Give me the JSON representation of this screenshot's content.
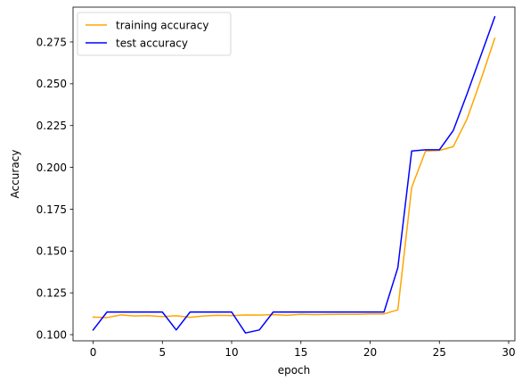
{
  "chart_data": {
    "type": "line",
    "title": "",
    "xlabel": "epoch",
    "ylabel": "Accuracy",
    "xlim": [
      -1.45,
      30.45
    ],
    "ylim": [
      0.0963,
      0.2958
    ],
    "xticks": [
      0,
      5,
      10,
      15,
      20,
      25,
      30
    ],
    "yticks": [
      0.1,
      0.125,
      0.15,
      0.175,
      0.2,
      0.225,
      0.25,
      0.275
    ],
    "ytick_labels": [
      "0.100",
      "0.125",
      "0.150",
      "0.175",
      "0.200",
      "0.225",
      "0.250",
      "0.275"
    ],
    "grid": false,
    "legend_position": "top-left",
    "x": [
      0,
      1,
      2,
      3,
      4,
      5,
      6,
      7,
      8,
      9,
      10,
      11,
      12,
      13,
      14,
      15,
      16,
      17,
      18,
      19,
      20,
      21,
      22,
      23,
      24,
      25,
      26,
      27,
      28,
      29
    ],
    "series": [
      {
        "name": "training accuracy",
        "color": "#ffa500",
        "values": [
          0.1105,
          0.1102,
          0.1118,
          0.1112,
          0.1114,
          0.1108,
          0.1113,
          0.1104,
          0.1112,
          0.1116,
          0.1114,
          0.1118,
          0.1117,
          0.112,
          0.1116,
          0.1122,
          0.112,
          0.1121,
          0.1122,
          0.1122,
          0.1124,
          0.1124,
          0.1148,
          0.188,
          0.2098,
          0.2101,
          0.2124,
          0.229,
          0.2525,
          0.2772
        ]
      },
      {
        "name": "test accuracy",
        "color": "#0000ff",
        "values": [
          0.1028,
          0.1135,
          0.1135,
          0.1135,
          0.1135,
          0.1135,
          0.1028,
          0.1135,
          0.1135,
          0.1135,
          0.1135,
          0.101,
          0.1028,
          0.1135,
          0.1135,
          0.1135,
          0.1135,
          0.1135,
          0.1135,
          0.1135,
          0.1135,
          0.1135,
          0.14,
          0.2098,
          0.2105,
          0.2105,
          0.222,
          0.244,
          0.267,
          0.29
        ]
      }
    ]
  }
}
